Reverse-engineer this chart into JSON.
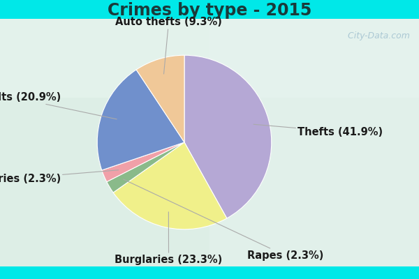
{
  "title": "Crimes by type - 2015",
  "labels": [
    "Thefts",
    "Burglaries",
    "Rapes",
    "Robberies",
    "Assaults",
    "Auto thefts"
  ],
  "values": [
    41.9,
    23.3,
    2.3,
    2.3,
    20.9,
    9.3
  ],
  "colors": [
    "#b5a8d5",
    "#f0f08a",
    "#8aba8a",
    "#f0a0a8",
    "#7090cc",
    "#f0c898"
  ],
  "background_cyan": "#00e8e8",
  "background_main_top": "#e8f5ee",
  "background_main_bot": "#d0eae0",
  "watermark": "  City-Data.com",
  "title_fontsize": 17,
  "label_fontsize": 10.5
}
